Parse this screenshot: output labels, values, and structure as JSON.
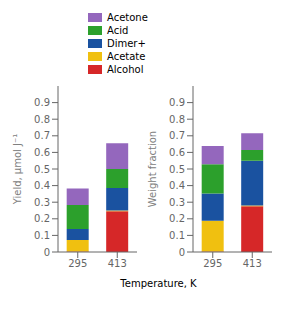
{
  "chart_data": [
    {
      "type": "bar",
      "stacked": true,
      "categories": [
        "295",
        "413"
      ],
      "series": [
        {
          "name": "Alcohol",
          "color": "#d62728",
          "values": [
            0.003,
            0.245
          ]
        },
        {
          "name": "Acetate",
          "color": "#f0c010",
          "values": [
            0.07,
            0.005
          ]
        },
        {
          "name": "Dimer+",
          "color": "#1a52a0",
          "values": [
            0.065,
            0.135
          ]
        },
        {
          "name": "Acid",
          "color": "#2ca02c",
          "values": [
            0.145,
            0.115
          ]
        },
        {
          "name": "Acetone",
          "color": "#9467bd",
          "values": [
            0.1,
            0.155
          ]
        }
      ],
      "ylabel": "Yield, μmol J⁻¹",
      "xlabel": "Temperature, K",
      "ylim": [
        0,
        1.0
      ],
      "yticks": [
        0,
        0.1,
        0.2,
        0.3,
        0.4,
        0.5,
        0.6,
        0.7,
        0.8,
        0.9
      ],
      "legend": "top"
    },
    {
      "type": "bar",
      "stacked": true,
      "categories": [
        "295",
        "413"
      ],
      "series": [
        {
          "name": "Alcohol",
          "color": "#d62728",
          "values": [
            0.003,
            0.275
          ]
        },
        {
          "name": "Acetate",
          "color": "#f0c010",
          "values": [
            0.185,
            0.005
          ]
        },
        {
          "name": "Dimer+",
          "color": "#1a52a0",
          "values": [
            0.165,
            0.27
          ]
        },
        {
          "name": "Acid",
          "color": "#2ca02c",
          "values": [
            0.175,
            0.065
          ]
        },
        {
          "name": "Acetone",
          "color": "#9467bd",
          "values": [
            0.11,
            0.1
          ]
        }
      ],
      "ylabel": "Weight fraction",
      "ylim": [
        0,
        1.0
      ],
      "yticks": [
        0,
        0.1,
        0.2,
        0.3,
        0.4,
        0.5,
        0.6,
        0.7,
        0.8,
        0.9
      ]
    }
  ]
}
